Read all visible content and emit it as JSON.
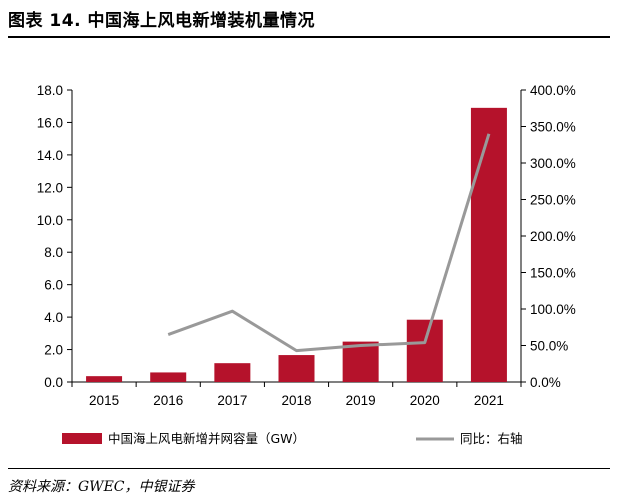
{
  "header": {
    "title": "图表 14. 中国海上风电新增装机量情况"
  },
  "footer": {
    "source": "资料来源：GWEC，中银证券"
  },
  "colors": {
    "bar": "#B5122B",
    "line": "#999999"
  },
  "chart_data": {
    "type": "bar",
    "title": "中国海上风电新增装机量情况",
    "categories": [
      "2015",
      "2016",
      "2017",
      "2018",
      "2019",
      "2020",
      "2021"
    ],
    "series": [
      {
        "name": "中国海上风电新增并网容量（GW）",
        "type": "bar",
        "axis": "left",
        "values": [
          0.36,
          0.59,
          1.16,
          1.66,
          2.49,
          3.84,
          16.9
        ]
      },
      {
        "name": "同比：右轴",
        "type": "line",
        "axis": "right",
        "values": [
          null,
          65,
          97,
          43,
          50,
          54,
          340
        ]
      }
    ],
    "y_left": {
      "ylim": [
        0,
        18
      ],
      "ticks": [
        "0.0",
        "2.0",
        "4.0",
        "6.0",
        "8.0",
        "10.0",
        "12.0",
        "14.0",
        "16.0",
        "18.0"
      ]
    },
    "y_right": {
      "ylim": [
        0,
        400
      ],
      "ticks": [
        "0.0%",
        "50.0%",
        "100.0%",
        "150.0%",
        "200.0%",
        "250.0%",
        "300.0%",
        "350.0%",
        "400.0%"
      ]
    },
    "legend": {
      "position": "bottom",
      "bar_label": "中国海上风电新增并网容量（GW）",
      "line_label": "同比：右轴"
    },
    "grid": false
  }
}
